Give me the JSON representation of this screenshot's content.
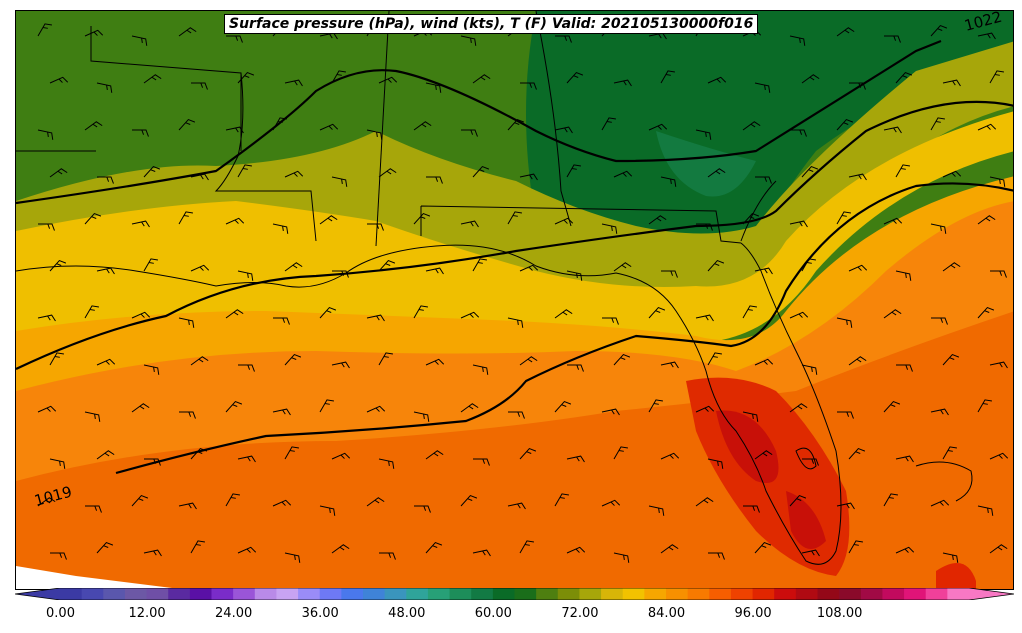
{
  "title": "Surface pressure (hPa), wind (kts), T (F) Valid: 202105130000f016",
  "isobar_labels": [
    "1019",
    "1022"
  ],
  "colorbar": {
    "tick_labels": [
      "0.00",
      "12.00",
      "24.00",
      "36.00",
      "48.00",
      "60.00",
      "72.00",
      "84.00",
      "96.00",
      "108.00"
    ],
    "colors": [
      "#3b3aa4",
      "#4848b0",
      "#5a57ad",
      "#6c58a5",
      "#6f4fa6",
      "#5a2aa0",
      "#5a10a5",
      "#7a2cc9",
      "#9a55d8",
      "#b98ae8",
      "#c8a3f2",
      "#9a8cf8",
      "#6e79f5",
      "#4a78ec",
      "#3f83d8",
      "#3a95bd",
      "#2fa49a",
      "#27a077",
      "#1d8e5a",
      "#127a44",
      "#0a6b27",
      "#1a6e1a",
      "#4e7f10",
      "#7c8e08",
      "#a7a60a",
      "#d8b508",
      "#f2c200",
      "#f6a600",
      "#f79000",
      "#f87a00",
      "#f65e00",
      "#ef4200",
      "#e12600",
      "#cc0c0c",
      "#b00a12",
      "#940818",
      "#8a0a2a",
      "#a10a45",
      "#c20a5e",
      "#e01478",
      "#f0409a",
      "#f878c4"
    ],
    "ticks_span": [
      0,
      108
    ]
  },
  "zones": [
    {
      "name": "upper-dark-green",
      "color": "#0a6b27"
    },
    {
      "name": "mid-green",
      "color": "#3f7e12"
    },
    {
      "name": "olive",
      "color": "#a7a60a"
    },
    {
      "name": "yellow",
      "color": "#efbf00"
    },
    {
      "name": "orange-light",
      "color": "#f6a600"
    },
    {
      "name": "orange",
      "color": "#f7850a"
    },
    {
      "name": "orange-dark",
      "color": "#f06a00"
    },
    {
      "name": "red",
      "color": "#df2a00"
    }
  ]
}
